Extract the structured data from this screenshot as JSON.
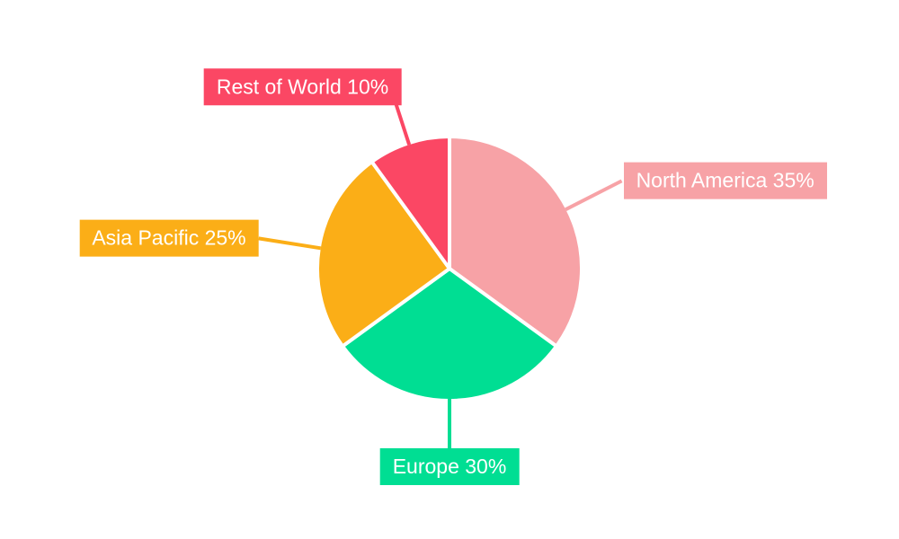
{
  "page": {
    "background_color": "#FFFFFF",
    "title": ""
  },
  "chart_data": {
    "type": "pie",
    "title": "",
    "start_angle_deg": 0,
    "direction": "clockwise",
    "unit": "%",
    "legend_position": "none",
    "label_style": {
      "kind": "callout-box-with-leader-line",
      "text_color": "#FFFFFF"
    },
    "separator_color": "#FFFFFF",
    "slices": [
      {
        "label": "North America",
        "value": 35,
        "callout_text": "North America 35%",
        "color": "#F7A2A6"
      },
      {
        "label": "Europe",
        "value": 30,
        "callout_text": "Europe 30%",
        "color": "#00DE93"
      },
      {
        "label": "Asia Pacific",
        "value": 25,
        "callout_text": "Asia Pacific 25%",
        "color": "#FBAE17"
      },
      {
        "label": "Rest of World",
        "value": 10,
        "callout_text": "Rest of World 10%",
        "color": "#FB4764"
      }
    ]
  }
}
